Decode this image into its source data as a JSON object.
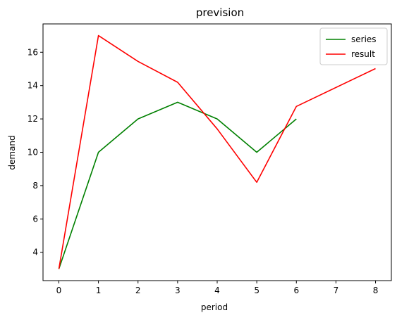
{
  "chart_data": {
    "type": "line",
    "title": "prevision",
    "xlabel": "period",
    "ylabel": "demand",
    "xlim": [
      -0.4,
      8.4
    ],
    "ylim": [
      2.3,
      17.7
    ],
    "xticks": [
      0,
      1,
      2,
      3,
      4,
      5,
      6,
      7,
      8
    ],
    "yticks": [
      4,
      6,
      8,
      10,
      12,
      14,
      16
    ],
    "grid": false,
    "legend_position": "top-right",
    "series": [
      {
        "name": "series",
        "color": "#008000",
        "x": [
          0,
          1,
          2,
          3,
          4,
          5,
          6
        ],
        "y": [
          3,
          10,
          12,
          13,
          12,
          10,
          12
        ]
      },
      {
        "name": "result",
        "color": "#ff0000",
        "x": [
          0,
          1,
          2,
          3,
          4,
          5,
          6,
          8
        ],
        "y": [
          3,
          17,
          15.45,
          14.2,
          11.4,
          8.2,
          12.75,
          15.02
        ]
      }
    ]
  }
}
